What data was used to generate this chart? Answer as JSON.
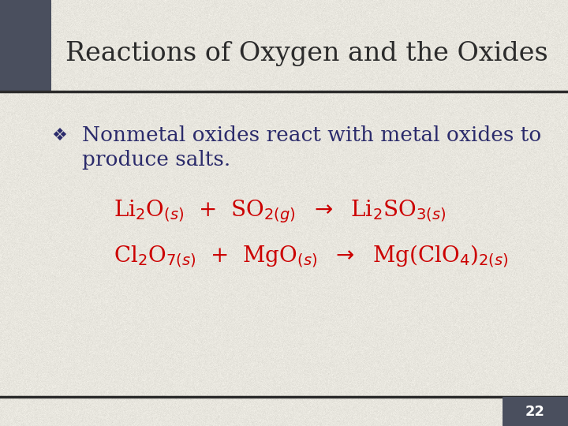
{
  "bg_color": "#e8e6de",
  "title": "Reactions of Oxygen and the Oxides",
  "title_color": "#2b2b2b",
  "title_fontsize": 24,
  "title_font": "serif",
  "header_bar_color": "#4a4f5e",
  "line_color": "#2b2b2b",
  "bullet_text_line1": "Nonmetal oxides react with metal oxides to",
  "bullet_text_line2": "produce salts.",
  "bullet_color": "#2b2b6b",
  "bullet_fontsize": 19,
  "equation_color": "#cc0000",
  "eq1": "Li$_2$O$_{(s)}$  +  SO$_{2(g)}$  $\\rightarrow$  Li$_2$SO$_{3(s)}$",
  "eq2": "Cl$_2$O$_{7(s)}$  +  MgO$_{(s)}$  $\\rightarrow$  Mg(ClO$_4$)$_{2(s)}$",
  "eq_fontsize": 20,
  "page_number": "22",
  "page_num_color": "#ffffff",
  "page_num_bg": "#4a4f5e"
}
